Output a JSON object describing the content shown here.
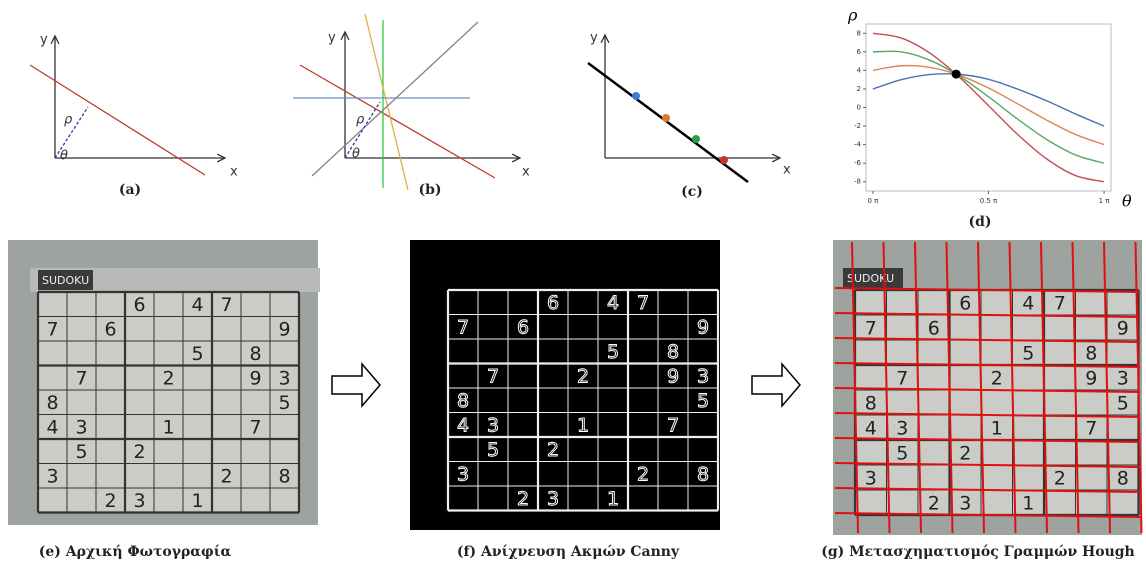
{
  "panels": {
    "a": {
      "caption": "(a)",
      "x": "x",
      "y": "y",
      "rho": "ρ",
      "theta": "θ"
    },
    "b": {
      "caption": "(b)",
      "x": "x",
      "y": "y",
      "rho": "ρ",
      "theta": "θ"
    },
    "c": {
      "caption": "(c)",
      "x": "x",
      "y": "y"
    },
    "d": {
      "caption": "(d)",
      "x_label": "θ",
      "y_label": "ρ"
    },
    "e": {
      "caption": "(e) Αρχική Φωτογραφία",
      "header": "SUDOKU"
    },
    "f": {
      "caption": "(f) Ανίχνευση Ακμών Canny"
    },
    "g": {
      "caption": "(g) Μετασχηματισμός Γραμμών Hough",
      "header": "SUDOKU"
    }
  },
  "chart_data": {
    "type": "line",
    "x": [
      0,
      0.125,
      0.25,
      0.375,
      0.5,
      0.625,
      0.75,
      0.875,
      1
    ],
    "series": [
      {
        "color": "#c44e52",
        "values": [
          8,
          7.47,
          5.8,
          3.25,
          0.2,
          -2.88,
          -5.51,
          -7.32,
          -8
        ]
      },
      {
        "color": "#55a868",
        "values": [
          6,
          5.99,
          5.06,
          3.37,
          1.16,
          -1.23,
          -3.42,
          -5.1,
          -6
        ]
      },
      {
        "color": "#dd8452",
        "values": [
          4,
          4.5,
          4.31,
          3.47,
          2.1,
          0.41,
          -1.34,
          -2.89,
          -4
        ]
      },
      {
        "color": "#4c72b0",
        "values": [
          2,
          3.01,
          3.56,
          3.57,
          3.04,
          1.99,
          0.74,
          -0.68,
          -2
        ]
      }
    ],
    "point": {
      "x": 0.36,
      "y": 3.6,
      "color": "#000000"
    },
    "xlim": [
      -0.03,
      1.03
    ],
    "ylim": [
      -9,
      9
    ],
    "xticks": [
      {
        "value": 0,
        "label": "0 π"
      },
      {
        "value": 0.5,
        "label": "0.5 π"
      },
      {
        "value": 1,
        "label": "1 π"
      }
    ],
    "yticks": [
      8,
      6,
      4,
      2,
      0,
      -2,
      -4,
      -6,
      -8
    ]
  },
  "sudoku": {
    "rows": [
      [
        null,
        null,
        null,
        "6",
        null,
        "4",
        "7",
        null,
        null
      ],
      [
        "7",
        null,
        "6",
        null,
        null,
        null,
        null,
        null,
        "9"
      ],
      [
        null,
        null,
        null,
        null,
        null,
        "5",
        null,
        "8",
        null
      ],
      [
        null,
        "7",
        null,
        null,
        "2",
        null,
        null,
        "9",
        "3"
      ],
      [
        "8",
        null,
        null,
        null,
        null,
        null,
        null,
        null,
        "5"
      ],
      [
        "4",
        "3",
        null,
        null,
        "1",
        null,
        null,
        "7",
        null
      ],
      [
        null,
        "5",
        null,
        "2",
        null,
        null,
        null,
        null,
        null
      ],
      [
        "3",
        null,
        null,
        null,
        null,
        null,
        "2",
        null,
        "8"
      ],
      [
        null,
        null,
        "2",
        "3",
        null,
        "1",
        null,
        null,
        null
      ]
    ]
  }
}
